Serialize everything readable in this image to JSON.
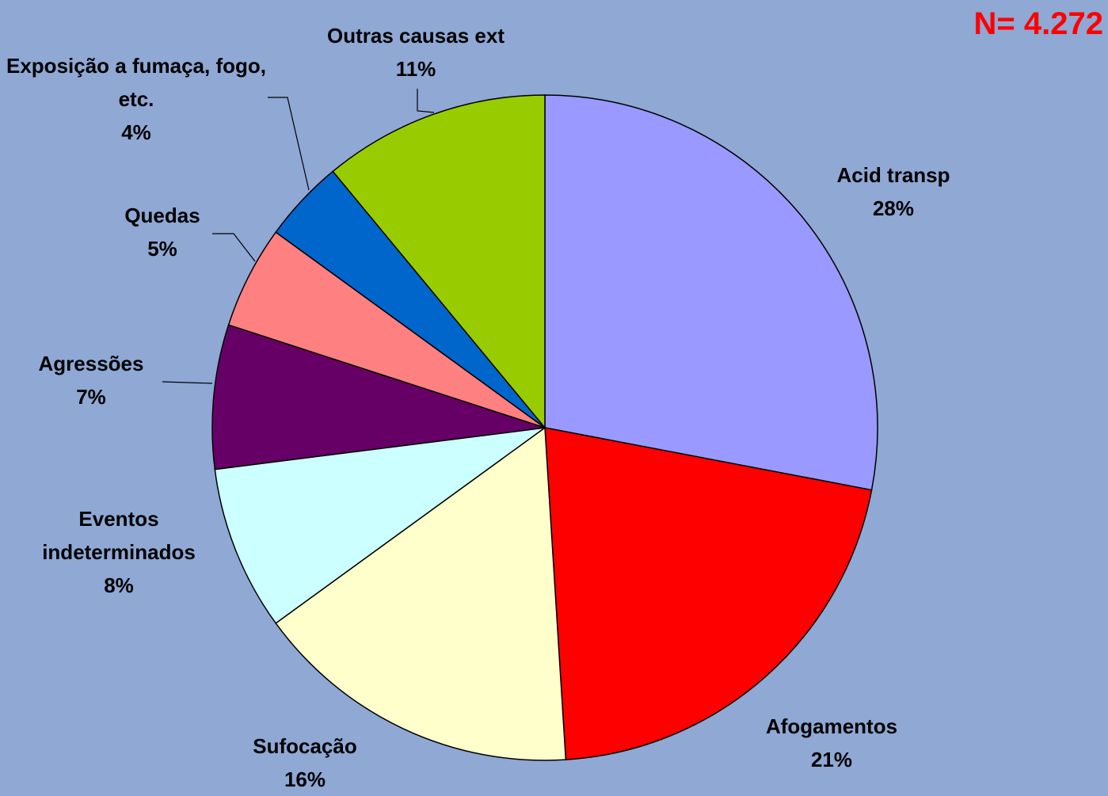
{
  "chart_data": {
    "type": "pie",
    "annotation": "N= 4.272",
    "categories": [
      "Acid transp",
      "Afogamentos",
      "Sufocação",
      "Eventos indeterminados",
      "Agressões",
      "Quedas",
      "Exposição a fumaça, fogo, etc.",
      "Outras causas ext"
    ],
    "values": [
      28,
      21,
      16,
      8,
      7,
      5,
      4,
      11
    ],
    "value_labels": [
      "28%",
      "21%",
      "16%",
      "8%",
      "7%",
      "5%",
      "4%",
      "11%"
    ],
    "colors": [
      "#9999ff",
      "#ff0000",
      "#ffffcc",
      "#ccffff",
      "#660066",
      "#ff8080",
      "#0066cc",
      "#99cc00"
    ]
  }
}
